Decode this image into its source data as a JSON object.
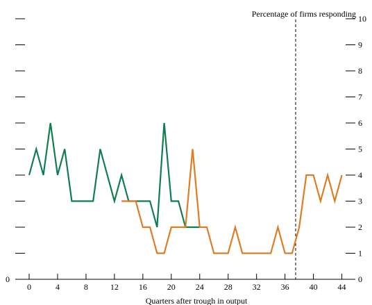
{
  "chart_data": {
    "type": "line",
    "title": "",
    "xlabel": "Quarters after trough in output",
    "ylabel": "Percentage of firms responding",
    "xlim": [
      -0.5,
      44.5
    ],
    "ylim": [
      0,
      10
    ],
    "x_ticks": [
      0,
      4,
      8,
      12,
      16,
      20,
      24,
      28,
      32,
      36,
      40,
      44
    ],
    "y_ticks": [
      1,
      2,
      3,
      4,
      5,
      6,
      7,
      8,
      9,
      10
    ],
    "y_tick_labels_right": [
      "1",
      "2",
      "3",
      "4",
      "5",
      "6",
      "7",
      "8",
      "9",
      "10"
    ],
    "y_axis_zero_label": "0",
    "x_axis_zero_label": "0",
    "grid": false,
    "legend": "none",
    "vertical_reference_line": {
      "x": 37.5,
      "style": "dashed"
    },
    "series": [
      {
        "color": "#0f7d50",
        "x": [
          0,
          1,
          2,
          3,
          4,
          5,
          6,
          7,
          8,
          9,
          10,
          11,
          12,
          13,
          14,
          15,
          16,
          17,
          18,
          19,
          20,
          21,
          22,
          23,
          24
        ],
        "y": [
          4,
          5,
          4,
          6,
          4,
          5,
          3,
          3,
          3,
          3,
          5,
          4,
          3,
          4,
          3,
          3,
          3,
          3,
          2,
          6,
          3,
          3,
          2,
          2,
          2
        ]
      },
      {
        "color": "#e07b24",
        "x": [
          13,
          14,
          15,
          16,
          17,
          18,
          19,
          20,
          21,
          22,
          23,
          24,
          25,
          26,
          27,
          28,
          29,
          30,
          31,
          32,
          33,
          34,
          35,
          36,
          37,
          38,
          39,
          40,
          41,
          42,
          43,
          44
        ],
        "y": [
          3,
          3,
          3,
          2,
          2,
          1,
          1,
          2,
          2,
          2,
          5,
          2,
          2,
          1,
          1,
          1,
          2,
          1,
          1,
          1,
          1,
          1,
          2,
          1,
          1,
          2,
          4,
          4,
          3,
          4,
          3,
          4
        ]
      }
    ]
  }
}
